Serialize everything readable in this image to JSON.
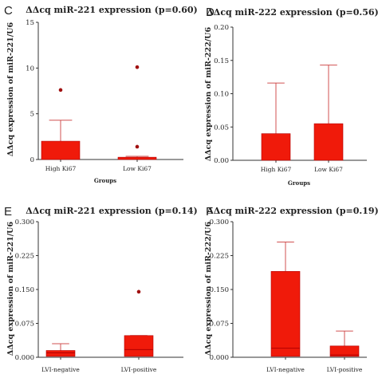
{
  "colors": {
    "bar": "#f01a0a",
    "bar_edge": "#b30000",
    "error": "#d05050",
    "outlier": "#a01010",
    "axis": "#333333"
  },
  "chart_data": [
    {
      "panel": "C",
      "type": "bar",
      "title": "ΔΔcq miR-221 expression (p=0.60)",
      "ylabel": "ΔΔcq expression of miR-221/U6",
      "xlabel": "Groups",
      "ylim": [
        0,
        15
      ],
      "yticks": [
        "0",
        "5",
        "10",
        "15"
      ],
      "yticks_values": [
        0,
        5,
        10,
        15
      ],
      "categories": [
        "High Ki67",
        "Low Ki67"
      ],
      "values": [
        2.0,
        0.25
      ],
      "error_upper": [
        4.3,
        0.35
      ],
      "outliers": [
        [
          7.6
        ],
        [
          10.1,
          1.4
        ]
      ]
    },
    {
      "panel": "D",
      "type": "bar",
      "title": "ΔΔcq miR-222 expression (p=0.56)",
      "ylabel": "ΔΔcq expression of miR-222/U6",
      "xlabel": "Groups",
      "ylim": [
        0,
        0.2
      ],
      "yticks": [
        "0.00",
        "0.05",
        "0.10",
        "0.15",
        "0.20"
      ],
      "yticks_values": [
        0,
        0.05,
        0.1,
        0.15,
        0.2
      ],
      "categories": [
        "High Ki67",
        "Low Ki67"
      ],
      "values": [
        0.04,
        0.055
      ],
      "error_upper": [
        0.116,
        0.143
      ],
      "outliers": [
        [],
        []
      ]
    },
    {
      "panel": "E",
      "type": "box",
      "title": "ΔΔcq miR-221 expression (p=0.14)",
      "ylabel": "ΔΔcq expression of miR-221/U6",
      "xlabel": "",
      "ylim": [
        0,
        0.3
      ],
      "yticks": [
        "0.000",
        "0.075",
        "0.150",
        "0.225",
        "0.300"
      ],
      "yticks_values": [
        0,
        0.075,
        0.15,
        0.225,
        0.3
      ],
      "categories": [
        "LVI-negative",
        "LVI-positive"
      ],
      "box": [
        {
          "q1": 0.002,
          "median": 0.01,
          "q3": 0.015,
          "whisker_high": 0.03
        },
        {
          "q1": 0.002,
          "median": 0.017,
          "q3": 0.048,
          "whisker_high": 0.048
        }
      ],
      "outliers": [
        [],
        [
          0.145
        ]
      ]
    },
    {
      "panel": "F",
      "type": "box",
      "title": "ΔΔcq miR-222 expression (p=0.19)",
      "ylabel": "ΔΔcq expression of miR-222/U6",
      "xlabel": "",
      "ylim": [
        0,
        0.3
      ],
      "yticks": [
        "0.000",
        "0.075",
        "0.150",
        "0.225",
        "0.300"
      ],
      "yticks_values": [
        0,
        0.075,
        0.15,
        0.225,
        0.3
      ],
      "categories": [
        "LVI-negative",
        "LVI-positive"
      ],
      "box": [
        {
          "q1": 0.002,
          "median": 0.02,
          "q3": 0.19,
          "whisker_high": 0.255
        },
        {
          "q1": 0.002,
          "median": 0.005,
          "q3": 0.025,
          "whisker_high": 0.058
        }
      ],
      "outliers": [
        [],
        []
      ]
    }
  ]
}
